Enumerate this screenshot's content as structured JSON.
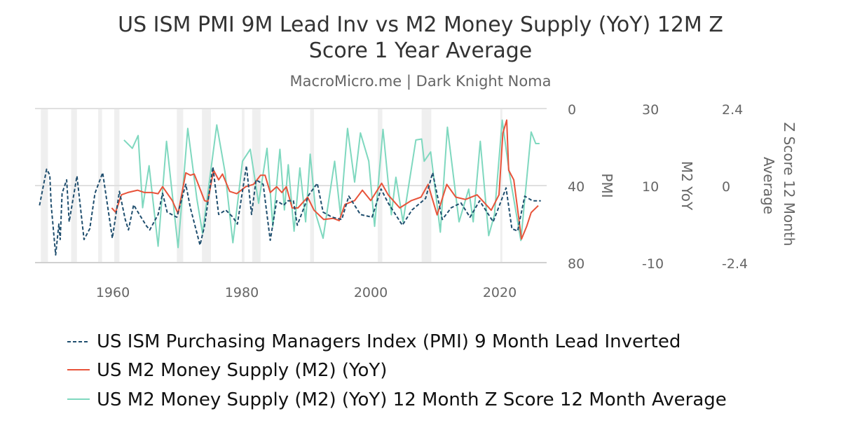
{
  "chart_data": {
    "type": "line",
    "title": "US ISM PMI 9M Lead Inv vs M2 Money Supply (YoY) 12M Z Score 1 Year Average",
    "title_lines": [
      "US ISM PMI 9M Lead Inv vs M2 Money Supply (YoY) 12M Z",
      "Score 1 Year Average"
    ],
    "subtitle": "MacroMicro.me | Dark Knight Noma",
    "xlim": [
      1947.9,
      2027.3
    ],
    "x_ticks": [
      "1960",
      "1980",
      "2000",
      "2020"
    ],
    "grid": true,
    "legend_position": "bottom",
    "axes": [
      {
        "id": "pmi",
        "label": "PMI",
        "ylim": [
          0,
          80
        ],
        "inverted": true,
        "ticks": [
          "0",
          "40",
          "80"
        ]
      },
      {
        "id": "m2",
        "label": "M2 YoY",
        "ylim": [
          -10,
          30
        ],
        "ticks": [
          "30",
          "10",
          "-10"
        ]
      },
      {
        "id": "z",
        "label": "Z Score 12 Month Average",
        "label_lines": [
          "Z Score 12 Month",
          "Average"
        ],
        "ylim": [
          -2.4,
          2.4
        ],
        "ticks": [
          "2.4",
          "0",
          "-2.4"
        ]
      }
    ],
    "recessions": [
      [
        1948.8,
        1949.9
      ],
      [
        1953.5,
        1954.4
      ],
      [
        1957.7,
        1958.3
      ],
      [
        1960.2,
        1961
      ],
      [
        1969.9,
        1970.9
      ],
      [
        1973.8,
        1975.2
      ],
      [
        1980,
        1980.4
      ],
      [
        1981.6,
        1982.9
      ],
      [
        1990.6,
        1991.2
      ],
      [
        2001.1,
        2001.8
      ],
      [
        2007.9,
        2009.4
      ],
      [
        2020.1,
        2020.3
      ]
    ],
    "series": [
      {
        "name": "US ISM Purchasing Managers Index (PMI) 9 Month Lead Inverted",
        "axis": "pmi",
        "color": "#1f4e6e",
        "dash": true,
        "x": [
          1948.6,
          1949.7,
          1950.2,
          1950.4,
          1951.1,
          1951.6,
          1951.8,
          1952.1,
          1952.8,
          1953.2,
          1954.4,
          1955.5,
          1956.4,
          1957.2,
          1958.4,
          1959.9,
          1961,
          1961.9,
          1962.4,
          1963.2,
          1964.1,
          1965.2,
          1965.7,
          1967,
          1967.7,
          1968.4,
          1969.9,
          1971.3,
          1972,
          1973.5,
          1974.2,
          1975.5,
          1976.4,
          1977.5,
          1978.6,
          1979.3,
          1980.7,
          1981.5,
          1982.2,
          1983.3,
          1984.4,
          1985.4,
          1986.5,
          1987.1,
          1988,
          1988.6,
          1990.4,
          1991.7,
          1992.6,
          1994,
          1995.5,
          1996.6,
          1998.4,
          2000.2,
          2001.6,
          2002.7,
          2004.9,
          2006.4,
          2008.5,
          2009.6,
          2011.1,
          2012.5,
          2014,
          2015.4,
          2016.9,
          2019,
          2021,
          2021.9,
          2022.8,
          2023.9,
          2025.1,
          2026.4
        ],
        "y": [
          50.3,
          31.5,
          34.5,
          50,
          76,
          60,
          68,
          44,
          37,
          58.8,
          35,
          68,
          62.4,
          44,
          33.3,
          67.3,
          43,
          57.6,
          63,
          50,
          55,
          61,
          63,
          55,
          44,
          53.8,
          56.4,
          39.3,
          51.5,
          70.9,
          61,
          30.3,
          55,
          52.7,
          56.4,
          60,
          29.7,
          55,
          37,
          39.3,
          68.4,
          47.9,
          50.2,
          47.9,
          47.9,
          60.6,
          44.8,
          38.8,
          53.8,
          56.4,
          57.6,
          45.5,
          55,
          56.4,
          41.8,
          49,
          60.6,
          52.7,
          46.7,
          33.3,
          57.6,
          51.5,
          49,
          56.4,
          47.9,
          58.8,
          41.2,
          62.4,
          63.6,
          45.5,
          47.9,
          47.9
        ]
      },
      {
        "name": "US M2 Money Supply (M2) (YoY)",
        "axis": "m2",
        "color": "#e8533a",
        "dash": false,
        "x": [
          1959.8,
          1960.4,
          1961.3,
          1962.3,
          1963.8,
          1964.9,
          1966,
          1967,
          1967.7,
          1969.2,
          1970.1,
          1971.3,
          1972,
          1972.6,
          1973.1,
          1974.2,
          1974.7,
          1975.6,
          1976.4,
          1977,
          1978.1,
          1979.2,
          1980.6,
          1981.8,
          1982.9,
          1983.6,
          1984.4,
          1985.4,
          1986.2,
          1986.9,
          1987.8,
          1988.7,
          1990.2,
          1991.2,
          1992.7,
          1994.2,
          1995.1,
          1996,
          1997.5,
          1998.7,
          2000,
          2001.7,
          2002.7,
          2004.5,
          2006.3,
          2007.8,
          2008.9,
          2010.3,
          2011.8,
          2013.2,
          2014.7,
          2016.5,
          2018.7,
          2019.9,
          2020.5,
          2021.1,
          2021.4,
          2022.2,
          2023.4,
          2024.2,
          2024.9,
          2026
        ],
        "y": [
          4.2,
          3.1,
          7.6,
          8.2,
          8.8,
          8.2,
          8.2,
          7.9,
          9.7,
          6.1,
          2.7,
          13.3,
          12.7,
          13,
          10.9,
          6.1,
          5.8,
          14,
          11.5,
          13,
          8.5,
          7.9,
          9.7,
          10.3,
          12.7,
          12.7,
          8.2,
          9.7,
          8.2,
          9.7,
          4.2,
          4.2,
          7,
          3.6,
          1.2,
          1.5,
          0.9,
          5.1,
          6.1,
          8.8,
          6.1,
          10.6,
          7.6,
          4.2,
          6.1,
          7,
          10.3,
          2.4,
          10.3,
          7,
          6.4,
          7.6,
          3.6,
          7.6,
          23.6,
          27,
          14,
          11.5,
          -3.9,
          -0.6,
          3,
          4.8
        ]
      },
      {
        "name": "US M2 Money Supply (M2) (YoY) 12 Month Z Score 12 Month Average",
        "axis": "z",
        "color": "#7fd8bf",
        "dash": false,
        "x": [
          1961.7,
          1963,
          1963.9,
          1964.6,
          1965.6,
          1967,
          1968.3,
          1970.1,
          1971.6,
          1973,
          1973.9,
          1976.1,
          1977.4,
          1978.6,
          1980.1,
          1981.3,
          1982.6,
          1983.9,
          1984.8,
          1985.9,
          1986.6,
          1987.2,
          1988.1,
          1989,
          1989.9,
          1990.6,
          1991.5,
          1992.6,
          1994.4,
          1995.3,
          1996.4,
          1997.5,
          1998.4,
          1999.7,
          2000.6,
          2001.9,
          2003.2,
          2003.9,
          2005,
          2007,
          2007.9,
          2008.3,
          2009.3,
          2010.8,
          2011.9,
          2013.7,
          2015.2,
          2015.9,
          2017,
          2018.3,
          2019.2,
          2020.4,
          2021.5,
          2023.3,
          2024.9,
          2025.6,
          2026.2
        ],
        "y": [
          1.42,
          1.16,
          1.56,
          -0.69,
          0.62,
          -1.89,
          1.38,
          -1.93,
          1.78,
          -0.4,
          -1.49,
          1.89,
          0.4,
          -1.78,
          0.76,
          1.13,
          -0.55,
          1.16,
          -1.27,
          1.13,
          -0.76,
          0.65,
          -1.42,
          0.55,
          -1.13,
          0.98,
          -0.91,
          -1.64,
          0.76,
          -0.91,
          1.78,
          0.11,
          1.64,
          0.76,
          -1.27,
          1.75,
          -0.91,
          0.26,
          -1.13,
          1.42,
          1.45,
          0.76,
          1.05,
          -1.45,
          1.82,
          -1.13,
          -0.11,
          -1.13,
          1.38,
          -1.56,
          -0.91,
          2.04,
          0.4,
          -1.71,
          1.67,
          1.31,
          1.31
        ]
      }
    ]
  }
}
